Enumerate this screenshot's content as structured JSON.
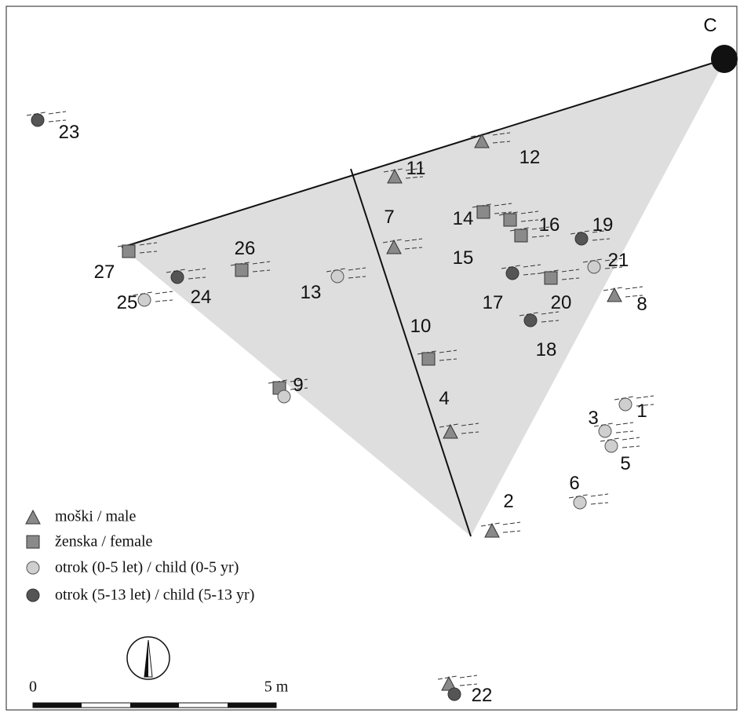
{
  "corner_label": "C",
  "burials": [
    "1",
    "2",
    "3",
    "4",
    "5",
    "6",
    "7",
    "8",
    "9",
    "10",
    "11",
    "12",
    "13",
    "14",
    "15",
    "16",
    "17",
    "18",
    "19",
    "20",
    "21",
    "22",
    "23",
    "24",
    "25",
    "26",
    "27"
  ],
  "legend": [
    "moški / male",
    "ženska / female",
    "otrok (0-5 let) / child (0-5 yr)",
    "otrok (5-13 let) / child (5-13 yr)"
  ],
  "scale": {
    "start": "0",
    "end": "5 m"
  }
}
